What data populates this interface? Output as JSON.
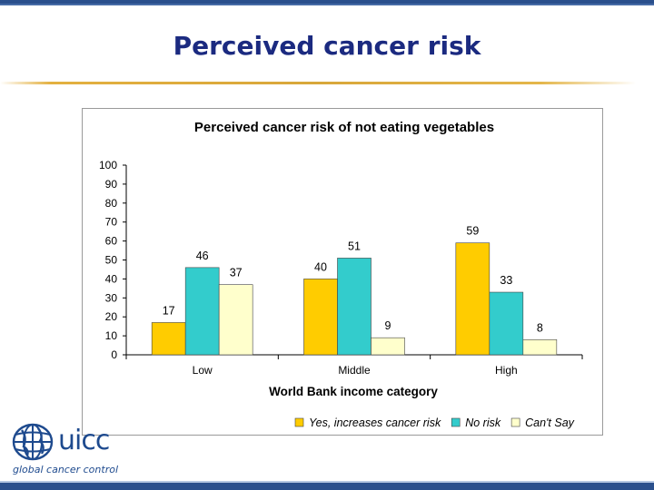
{
  "slide": {
    "title": "Perceived cancer risk"
  },
  "logo": {
    "wordmark": "uicc",
    "tagline": "global cancer control",
    "color": "#1e4a8e",
    "icon": "globe-icon"
  },
  "chart_data": {
    "type": "bar",
    "title": "Perceived cancer risk of not eating vegetables",
    "xlabel": "World Bank income category",
    "ylabel": "",
    "ylim": [
      0,
      100
    ],
    "yticks": [
      0,
      10,
      20,
      30,
      40,
      50,
      60,
      70,
      80,
      90,
      100
    ],
    "grid": false,
    "legend_position": "bottom",
    "categories": [
      "Low",
      "Middle",
      "High"
    ],
    "series": [
      {
        "name": "Yes, increases cancer risk",
        "color": "#ffcc00",
        "values": [
          17,
          40,
          59
        ]
      },
      {
        "name": "No risk",
        "color": "#33cccc",
        "values": [
          46,
          51,
          33
        ]
      },
      {
        "name": "Can't Say",
        "color": "#ffffcc",
        "values": [
          37,
          9,
          8
        ]
      }
    ]
  }
}
